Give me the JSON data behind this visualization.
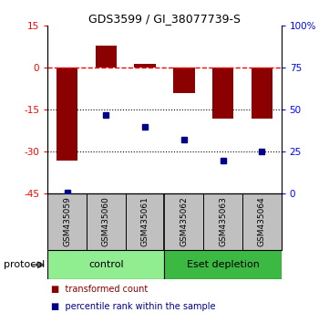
{
  "title": "GDS3599 / GI_38077739-S",
  "samples": [
    "GSM435059",
    "GSM435060",
    "GSM435061",
    "GSM435062",
    "GSM435063",
    "GSM435064"
  ],
  "red_values": [
    -33,
    8,
    1.5,
    -9,
    -18,
    -18
  ],
  "blue_values": [
    1,
    47,
    40,
    32,
    20,
    25
  ],
  "ylim_left": [
    -45,
    15
  ],
  "ylim_right": [
    0,
    100
  ],
  "left_ticks": [
    15,
    0,
    -15,
    -30,
    -45
  ],
  "right_ticks": [
    100,
    75,
    50,
    25,
    0
  ],
  "hline_y": 0,
  "dotted_lines": [
    -15,
    -30
  ],
  "control_color": "#90EE90",
  "eset_color": "#3CB943",
  "bar_color": "#8B0000",
  "dot_color": "#00008B",
  "sample_bg": "#C0C0C0",
  "protocol_label": "protocol",
  "control_label": "control",
  "eset_label": "Eset depletion",
  "legend_red": "transformed count",
  "legend_blue": "percentile rank within the sample"
}
